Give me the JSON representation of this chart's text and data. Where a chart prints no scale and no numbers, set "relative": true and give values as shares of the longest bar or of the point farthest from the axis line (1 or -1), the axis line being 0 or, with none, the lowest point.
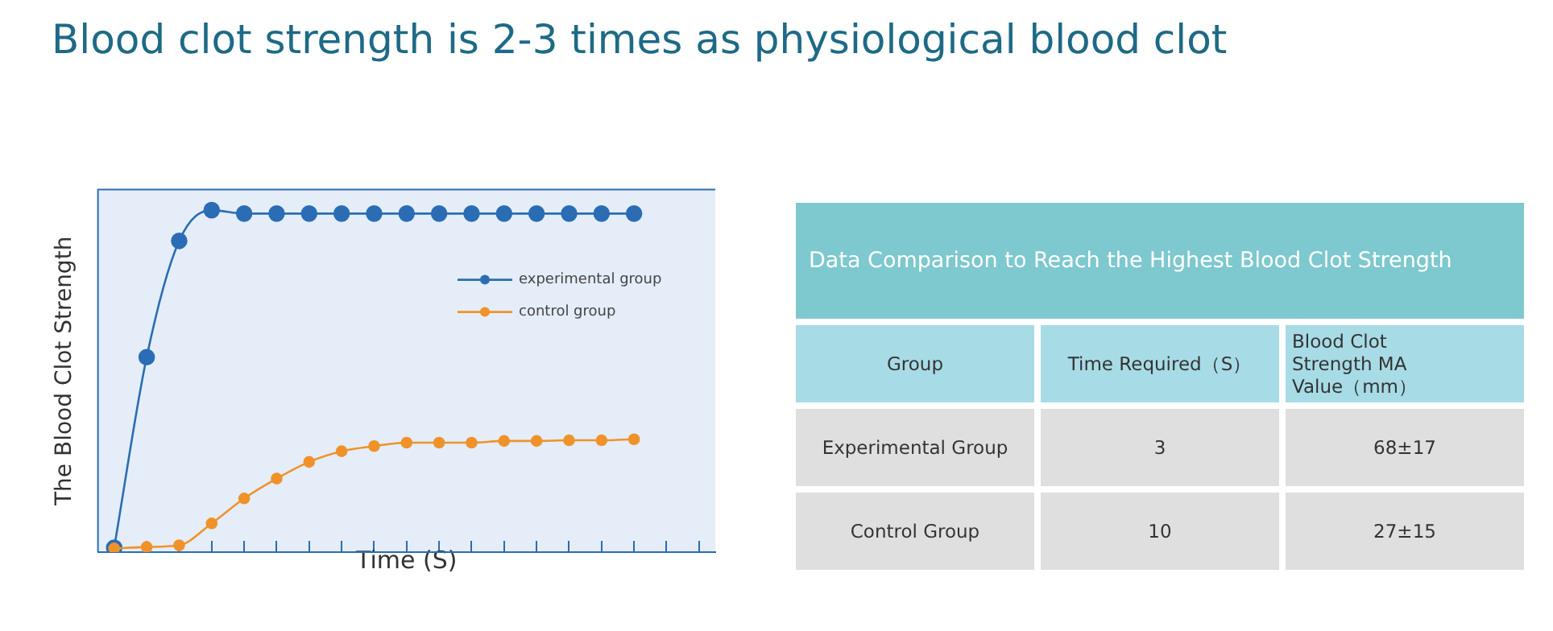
{
  "chart_data": [
    {
      "type": "line",
      "title": "Blood clot strength is 2-3 times as physiological blood clot",
      "xlabel": "Time (S)",
      "ylabel": "The Blood Clot Strength",
      "relative": true,
      "marker": "circle",
      "legend": "top right",
      "categories": [
        null,
        null,
        null,
        null,
        null,
        null,
        null,
        null,
        null,
        null,
        null,
        null,
        null,
        null,
        null,
        null,
        null,
        null,
        null
      ],
      "series": [
        {
          "name": "experimental group",
          "color": "#2a6db5",
          "values": [
            0.013,
            0.57,
            0.91,
            1,
            0.99,
            0.99,
            0.99,
            0.99,
            0.99,
            0.99,
            0.99,
            0.99,
            0.99,
            0.99,
            0.99,
            0.99,
            0.99,
            null,
            null
          ]
        },
        {
          "name": "control group",
          "color": "#f0922a",
          "values": [
            0.011,
            0.015,
            0.02,
            0.084,
            0.157,
            0.215,
            0.264,
            0.295,
            0.31,
            0.32,
            0.32,
            0.32,
            0.325,
            0.325,
            0.327,
            0.327,
            0.33,
            null,
            null
          ]
        }
      ]
    },
    {
      "type": "other",
      "title": "Data Comparison to Reach the Highest Blood Clot Strength",
      "categories": [
        "Group",
        "Time Required（S）",
        "Blood Clot Strength MA Value（mm）"
      ],
      "cell_labels": [
        [
          "Experimental Group",
          "3",
          "68±17"
        ],
        [
          "Control Group",
          "10",
          "27±15"
        ]
      ]
    }
  ]
}
